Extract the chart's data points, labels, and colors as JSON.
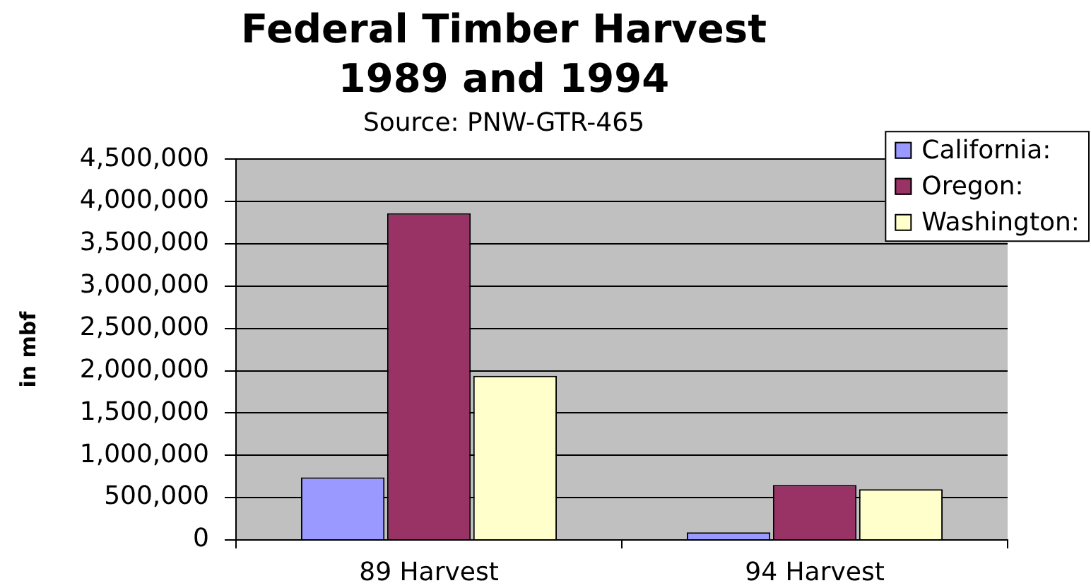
{
  "chart_data": {
    "type": "bar",
    "title": "Federal Timber Harvest\n1989 and 1994",
    "annotations": [
      "Source: PNW-GTR-465"
    ],
    "ylabel": "in mbf",
    "categories": [
      "89 Harvest",
      "94 Harvest"
    ],
    "series": [
      {
        "name": "California:",
        "color": "#9999ff",
        "values": [
          740000,
          90000
        ]
      },
      {
        "name": "Oregon:",
        "color": "#993366",
        "values": [
          3860000,
          650000
        ]
      },
      {
        "name": "Washington:",
        "color": "#ffffcc",
        "values": [
          1940000,
          600000
        ]
      }
    ],
    "ylim": [
      0,
      4500000
    ],
    "yticks": [
      {
        "value": 0,
        "label": "0"
      },
      {
        "value": 500000,
        "label": "500,000"
      },
      {
        "value": 1000000,
        "label": "1,000,000"
      },
      {
        "value": 1500000,
        "label": "1,500,000"
      },
      {
        "value": 2000000,
        "label": "2,000,000"
      },
      {
        "value": 2500000,
        "label": "2,500,000"
      },
      {
        "value": 3000000,
        "label": "3,000,000"
      },
      {
        "value": 3500000,
        "label": "3,500,000"
      },
      {
        "value": 4000000,
        "label": "4,000,000"
      },
      {
        "value": 4500000,
        "label": "4,500,000"
      }
    ],
    "grid": "y",
    "legend": "top right"
  }
}
